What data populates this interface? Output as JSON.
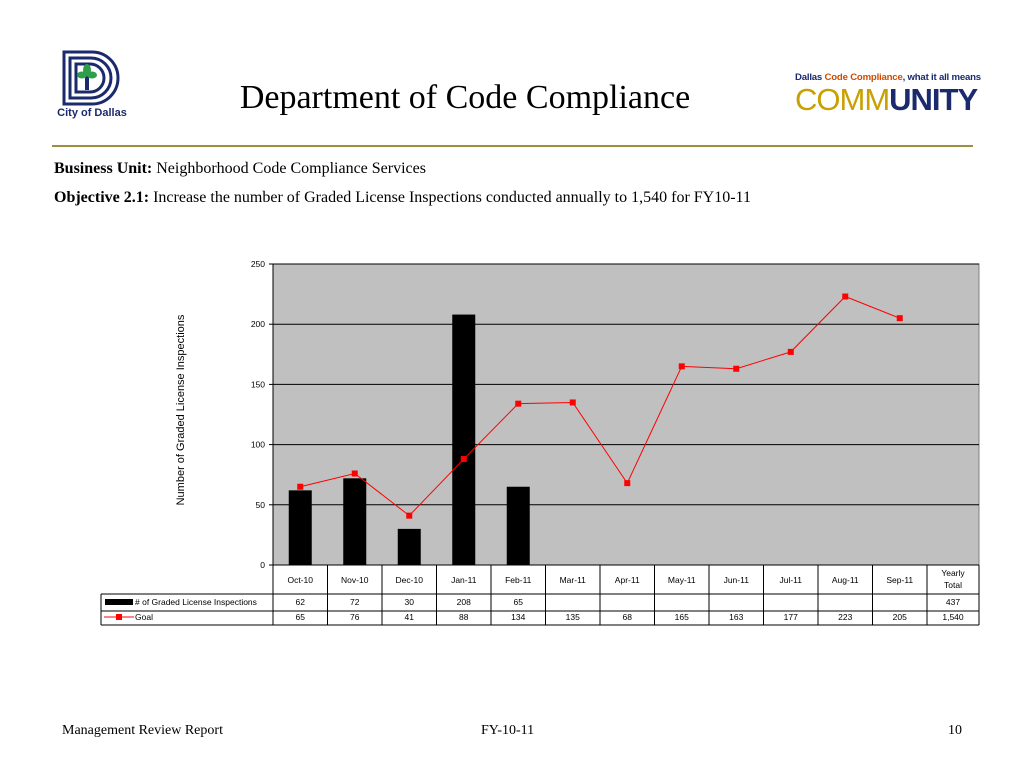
{
  "logo_left": {
    "caption": "City of Dallas"
  },
  "title": "Department of Code Compliance",
  "logo_right": {
    "tagline_1": "Dallas ",
    "tagline_2": "Code Compliance",
    "tagline_3": ", what it all means",
    "word_1": "COMM",
    "word_2": "UNITY"
  },
  "business_unit": {
    "label": "Business Unit:",
    "value": "Neighborhood Code Compliance Services"
  },
  "objective": {
    "label": "Objective 2.1:",
    "value": "Increase the number of Graded License Inspections conducted annually to 1,540 for FY10-11"
  },
  "chart_data": {
    "type": "bar",
    "ylabel": "Number of Graded License Inspections",
    "ylim": [
      0,
      250
    ],
    "yticks": [
      "0",
      "50",
      "100",
      "150",
      "200",
      "250"
    ],
    "grid": true,
    "categories": [
      "Oct-10",
      "Nov-10",
      "Dec-10",
      "Jan-11",
      "Feb-11",
      "Mar-11",
      "Apr-11",
      "May-11",
      "Jun-11",
      "Jul-11",
      "Aug-11",
      "Sep-11"
    ],
    "total_header": [
      "Yearly",
      "Total"
    ],
    "series": [
      {
        "name": "# of Graded License Inspections",
        "type": "bar",
        "color": "#000000",
        "values": [
          62,
          72,
          30,
          208,
          65,
          null,
          null,
          null,
          null,
          null,
          null,
          null
        ],
        "total": "437",
        "table_values": [
          "62",
          "72",
          "30",
          "208",
          "65",
          "",
          "",
          "",
          "",
          "",
          "",
          ""
        ]
      },
      {
        "name": "Goal",
        "type": "line",
        "color": "#ff0000",
        "values": [
          65,
          76,
          41,
          88,
          134,
          135,
          68,
          165,
          163,
          177,
          223,
          205
        ],
        "total": "1,540",
        "table_values": [
          "65",
          "76",
          "41",
          "88",
          "134",
          "135",
          "68",
          "165",
          "163",
          "177",
          "223",
          "205"
        ]
      }
    ],
    "legend": "data-table"
  },
  "footer": {
    "left": "Management Review Report",
    "center": "FY-10-11",
    "right": "10"
  }
}
